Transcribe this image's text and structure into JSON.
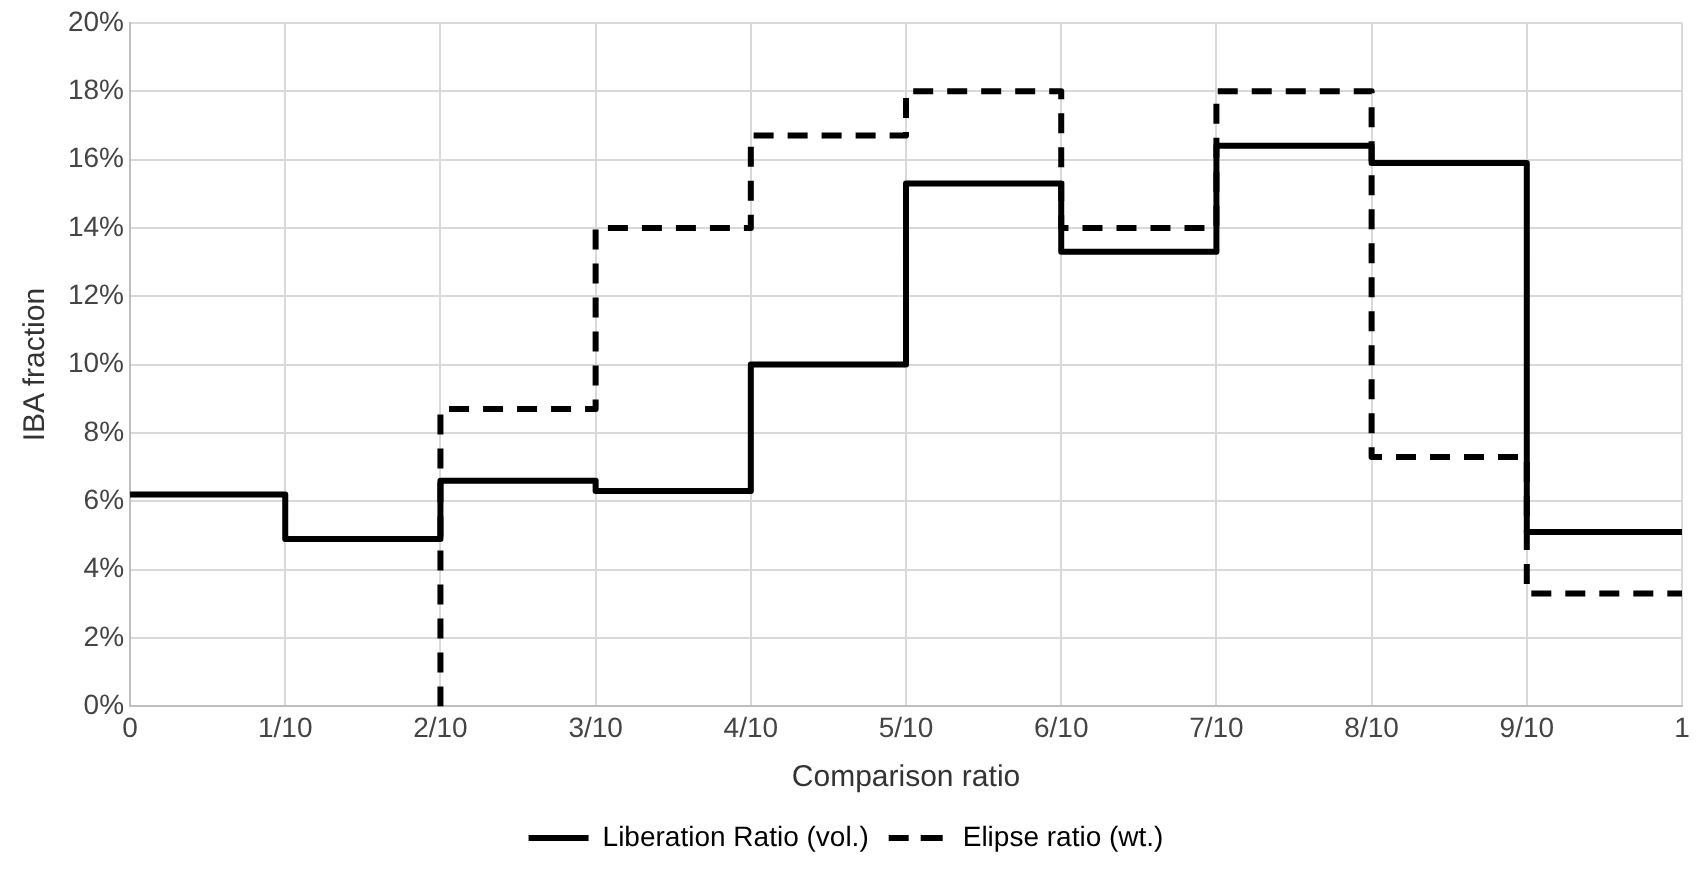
{
  "chart_data": {
    "type": "step",
    "xlabel": "Comparison ratio",
    "ylabel": "IBA fraction",
    "xlim": [
      0,
      1
    ],
    "xticks": [
      0,
      {
        "value": 0.1,
        "label": "1/10"
      },
      {
        "value": 0.2,
        "label": "2/10"
      },
      {
        "value": 0.3,
        "label": "3/10"
      },
      {
        "value": 0.4,
        "label": "4/10"
      },
      {
        "value": 0.5,
        "label": "5/10"
      },
      {
        "value": 0.6,
        "label": "6/10"
      },
      {
        "value": 0.7,
        "label": "7/10"
      },
      {
        "value": 0.8,
        "label": "8/10"
      },
      {
        "value": 0.9,
        "label": "9/10"
      },
      1
    ],
    "ylim": [
      0,
      20
    ],
    "yticks": [
      {
        "value": 0,
        "label": "0%"
      },
      {
        "value": 2,
        "label": "2%"
      },
      {
        "value": 4,
        "label": "4%"
      },
      {
        "value": 6,
        "label": "6%"
      },
      {
        "value": 8,
        "label": "8%"
      },
      {
        "value": 10,
        "label": "10%"
      },
      {
        "value": 12,
        "label": "12%"
      },
      {
        "value": 14,
        "label": "14%"
      },
      {
        "value": 16,
        "label": "16%"
      },
      {
        "value": 18,
        "label": "18%"
      },
      {
        "value": 20,
        "label": "20%"
      }
    ],
    "grid": true,
    "legend": "bottom",
    "marker": "none",
    "series": [
      {
        "name": "Liberation Ratio (vol.)",
        "color": "#000000",
        "line_style": "solid",
        "x": [
          0,
          0.1,
          0.2,
          0.3,
          0.4,
          0.5,
          0.6,
          0.7,
          0.8,
          0.9,
          1
        ],
        "values": [
          6.2,
          4.9,
          6.6,
          6.3,
          10.0,
          15.3,
          13.3,
          16.4,
          15.9,
          5.1,
          5.1
        ]
      },
      {
        "name": "Elipse ratio (wt.)",
        "color": "#000000",
        "line_style": "dashed",
        "x": [
          0.2,
          0.2,
          0.3,
          0.4,
          0.5,
          0.6,
          0.7,
          0.8,
          0.9,
          1
        ],
        "values": [
          0,
          8.7,
          14.0,
          16.7,
          18.0,
          14.0,
          18.0,
          7.3,
          3.3,
          3.3
        ]
      }
    ]
  }
}
